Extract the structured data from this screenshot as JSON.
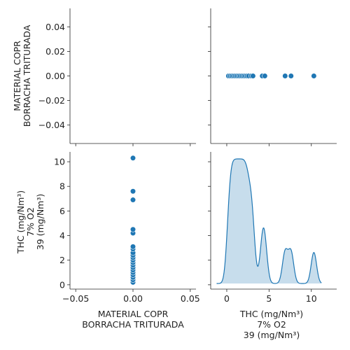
{
  "chart_data": {
    "type": "pairplot",
    "variables": [
      "MATERIAL COPR\nBORRACHA TRITURADA",
      "THC (mg/Nm³)\n7% O2\n39 (mg/Nm³)"
    ],
    "color": "#1f77b4",
    "grid": false,
    "panels": [
      {
        "id": "mat-hist",
        "row": 0,
        "col": 0,
        "type": "histogram",
        "x_var": 0,
        "xlim": [
          -0.055,
          0.055
        ],
        "ylim": [
          -0.055,
          0.055
        ],
        "xticks": [],
        "xtick_labels": [],
        "yticks": [
          -0.04,
          -0.02,
          0.0,
          0.02,
          0.04
        ],
        "ytick_labels": [
          "−0.04",
          "−0.02",
          "0.00",
          "0.02",
          "0.04"
        ],
        "ylabel_var": 0
      },
      {
        "id": "top-scatter",
        "row": 0,
        "col": 1,
        "type": "scatter",
        "x_var": 1,
        "y_var": 0,
        "xlim": [
          -1.9,
          13.0
        ],
        "ylim": [
          -0.055,
          0.055
        ],
        "xticks": [],
        "xtick_labels": [],
        "yticks": [],
        "ytick_labels": []
      },
      {
        "id": "bottom-scatter",
        "row": 1,
        "col": 0,
        "type": "scatter",
        "x_var": 0,
        "y_var": 1,
        "xlim": [
          -0.055,
          0.055
        ],
        "ylim": [
          -0.35,
          10.8
        ],
        "xticks": [
          -0.05,
          0.0,
          0.05
        ],
        "xtick_labels": [
          "−0.05",
          "0.00",
          "0.05"
        ],
        "yticks": [
          0,
          2,
          4,
          6,
          8,
          10
        ],
        "ytick_labels": [
          "0",
          "2",
          "4",
          "6",
          "8",
          "10"
        ],
        "xlabel_var": 0,
        "ylabel_var": 1
      },
      {
        "id": "thc-kde",
        "row": 1,
        "col": 1,
        "type": "kde",
        "x_var": 1,
        "xlim": [
          -1.9,
          13.0
        ],
        "ylim": [
          -0.02,
          0.43
        ],
        "xticks": [
          0,
          5,
          10
        ],
        "xtick_labels": [
          "0",
          "5",
          "10"
        ],
        "yticks": [],
        "ytick_labels": [],
        "xlabel_var": 1
      }
    ],
    "data": {
      "material": [
        0,
        0,
        0,
        0,
        0,
        0,
        0,
        0,
        0,
        0,
        0,
        0,
        0,
        0,
        0,
        0,
        0,
        0,
        0,
        0
      ],
      "thc": [
        0.2,
        0.4,
        0.6,
        0.8,
        1.0,
        1.2,
        1.4,
        1.6,
        1.8,
        2.0,
        2.2,
        2.4,
        2.6,
        2.9,
        3.1,
        4.2,
        4.5,
        6.9,
        7.6,
        10.3
      ]
    }
  }
}
